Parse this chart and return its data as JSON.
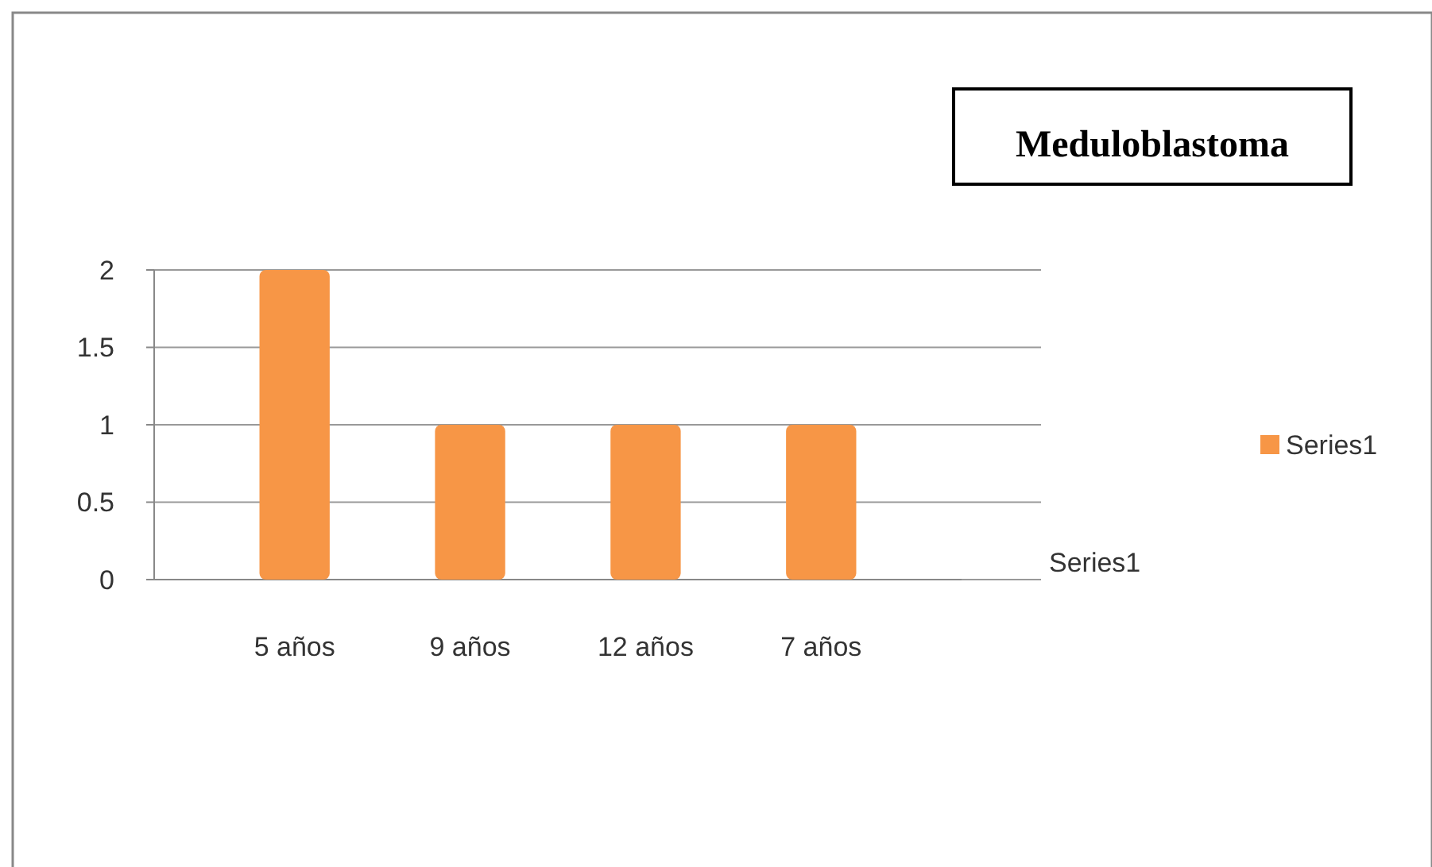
{
  "chart_data": {
    "type": "bar",
    "title": "Meduloblastoma",
    "categories": [
      "5 años",
      "9 años",
      "12 años",
      "7 años"
    ],
    "series": [
      {
        "name": "Series1",
        "color": "#f79646",
        "values": [
          2,
          1,
          1,
          1
        ]
      }
    ],
    "ylim": [
      0,
      2
    ],
    "yticks": [
      0,
      {
        "value": 0.5,
        "label": "0.5"
      },
      1,
      {
        "value": 1.5,
        "label": "1.5"
      },
      2
    ],
    "grid": "y",
    "legend": "right",
    "annotations": [
      "Series1"
    ]
  }
}
